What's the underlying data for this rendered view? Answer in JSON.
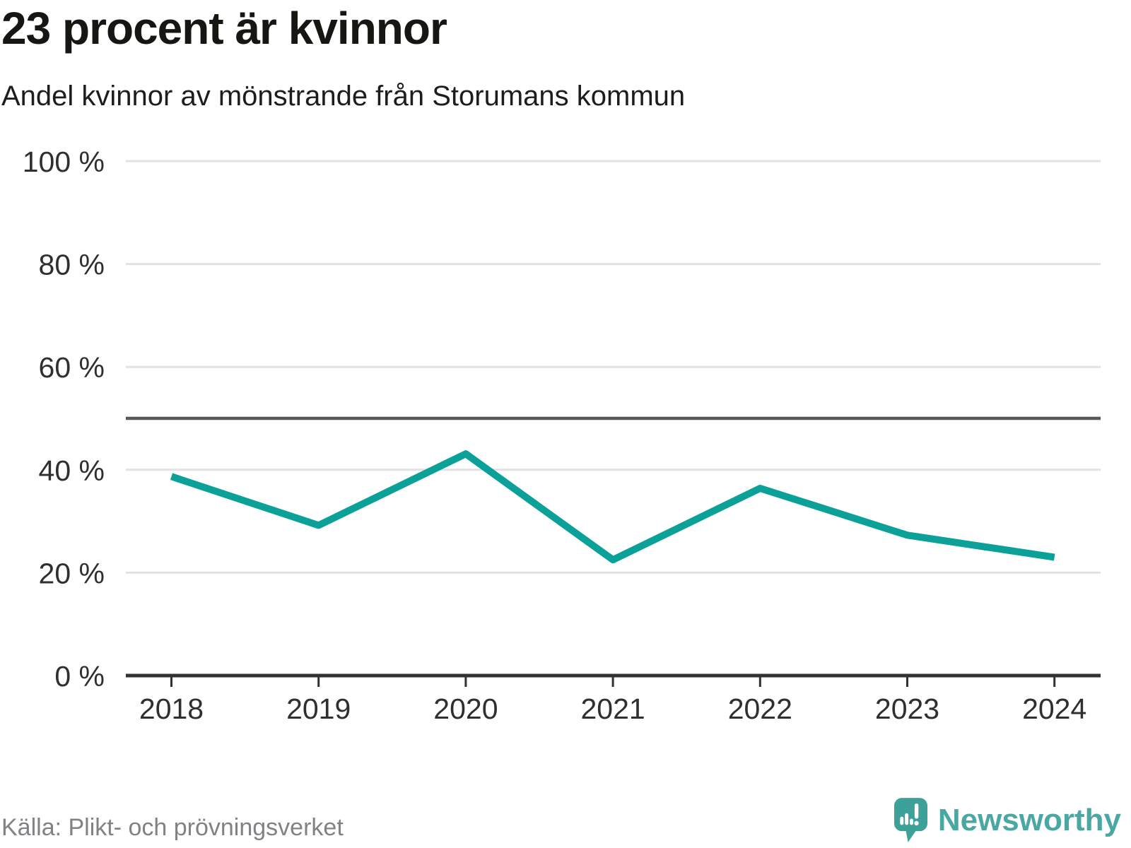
{
  "header": {
    "title": "23 procent är kvinnor",
    "subtitle": "Andel kvinnor av mönstrande från Storumans kommun"
  },
  "chart_data": {
    "type": "line",
    "title": "23 procent är kvinnor",
    "subtitle": "Andel kvinnor av mönstrande från Storumans kommun",
    "x": [
      2018,
      2019,
      2020,
      2021,
      2022,
      2023,
      2024
    ],
    "xtick_labels": [
      "2018",
      "2019",
      "2020",
      "2021",
      "2022",
      "2023",
      "2024"
    ],
    "series": [
      {
        "name": "Andel kvinnor av mönstrande (%)",
        "values": [
          38.7,
          29.2,
          43.1,
          22.5,
          36.4,
          27.3,
          23.0
        ]
      }
    ],
    "ylim": [
      0,
      100
    ],
    "yticks": [
      0,
      20,
      40,
      60,
      80,
      100
    ],
    "ytick_labels": [
      "0 %",
      "20 %",
      "40 %",
      "60 %",
      "80 %",
      "100 %"
    ],
    "reference_line_y": 50,
    "grid": true,
    "legend": "none",
    "xlabel": "",
    "ylabel": ""
  },
  "footer": {
    "source": "Källa: Plikt- och prövningsverket",
    "brand": "Newsworthy"
  },
  "icons": {
    "logo": "newsworthy-pin-icon"
  },
  "colors": {
    "line": "#0ba198",
    "grid": "#e2e2e2",
    "reference_line": "#58585a",
    "axis": "#323234",
    "tick_text": "#2f2f2f",
    "title_text": "#161613",
    "subtitle_text": "#1d1d1b",
    "source_text": "#828286",
    "brand_text": "#4ba7a1",
    "logo": "#3da19a",
    "logo_glyph": "#ffffff"
  }
}
